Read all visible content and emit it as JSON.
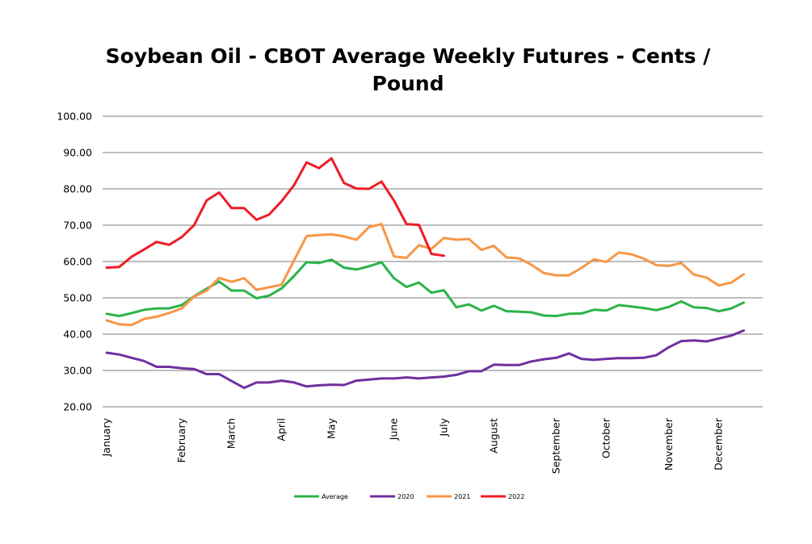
{
  "chart_data": {
    "type": "line",
    "title_line1": "Soybean Oil - CBOT Average Weekly Futures - Cents /",
    "title_line2": "Pound",
    "xlabel": "",
    "ylabel": "",
    "ylim": [
      20,
      100
    ],
    "yticks": [
      "20.00",
      "30.00",
      "40.00",
      "50.00",
      "60.00",
      "70.00",
      "80.00",
      "90.00",
      "100.00"
    ],
    "xlim_weeks": [
      1,
      53
    ],
    "grid": true,
    "legend_position": "bottom",
    "month_labels": [
      {
        "label": "January",
        "week": 1
      },
      {
        "label": "February",
        "week": 7
      },
      {
        "label": "March",
        "week": 11
      },
      {
        "label": "April",
        "week": 15
      },
      {
        "label": "May",
        "week": 19
      },
      {
        "label": "June",
        "week": 24
      },
      {
        "label": "July",
        "week": 28
      },
      {
        "label": "August",
        "week": 32
      },
      {
        "label": "September",
        "week": 37
      },
      {
        "label": "October",
        "week": 41
      },
      {
        "label": "November",
        "week": 46
      },
      {
        "label": "December",
        "week": 50
      }
    ],
    "series": [
      {
        "name": "Average",
        "color": "#2bb34a",
        "values": [
          45.6,
          45.0,
          45.8,
          46.7,
          47.1,
          47.1,
          48.0,
          50.4,
          52.5,
          54.5,
          52.0,
          52.0,
          49.9,
          50.6,
          52.6,
          56.0,
          59.8,
          59.6,
          60.5,
          58.3,
          57.8,
          58.7,
          59.8,
          55.4,
          53.0,
          54.2,
          51.4,
          52.1,
          47.4,
          48.2,
          46.5,
          47.8,
          46.3,
          46.2,
          46.0,
          45.1,
          45.0,
          45.6,
          45.7,
          46.7,
          46.5,
          48.0,
          47.6,
          47.2,
          46.6,
          47.5,
          49.0,
          47.4,
          47.2,
          46.3,
          47.1,
          48.7
        ]
      },
      {
        "name": "2020",
        "color": "#7030a0",
        "values": [
          34.9,
          34.4,
          33.5,
          32.6,
          31.0,
          31.0,
          30.6,
          30.4,
          29.0,
          29.0,
          27.1,
          25.2,
          26.7,
          26.7,
          27.2,
          26.7,
          25.6,
          25.9,
          26.1,
          26.0,
          27.2,
          27.5,
          27.8,
          27.8,
          28.1,
          27.8,
          28.1,
          28.3,
          28.8,
          29.8,
          29.8,
          31.6,
          31.5,
          31.5,
          32.5,
          33.1,
          33.5,
          34.7,
          33.2,
          32.9,
          33.2,
          33.4,
          33.4,
          33.5,
          34.2,
          36.4,
          38.1,
          38.3,
          38.0,
          38.8,
          39.6,
          41.0
        ]
      },
      {
        "name": "2021",
        "color": "#f79646",
        "values": [
          43.8,
          42.7,
          42.5,
          44.2,
          44.8,
          45.8,
          47.1,
          50.3,
          52.0,
          55.5,
          54.4,
          55.4,
          52.2,
          52.9,
          53.6,
          60.3,
          67.0,
          67.3,
          67.5,
          66.9,
          66.0,
          69.5,
          70.3,
          61.4,
          61.0,
          64.5,
          63.5,
          66.5,
          66.0,
          66.2,
          63.2,
          64.3,
          61.1,
          60.9,
          59.1,
          56.8,
          56.2,
          56.2,
          58.2,
          60.6,
          59.9,
          62.5,
          62.0,
          60.8,
          59.0,
          58.8,
          59.6,
          56.4,
          55.6,
          53.4,
          54.2,
          56.5
        ]
      },
      {
        "name": "2022",
        "color": "#ee1c25",
        "values": [
          58.3,
          58.5,
          61.3,
          63.3,
          65.4,
          64.6,
          66.7,
          70.0,
          76.8,
          79.0,
          74.7,
          74.7,
          71.5,
          72.9,
          76.6,
          81.0,
          87.3,
          85.7,
          88.4,
          81.6,
          80.1,
          80.0,
          82.0,
          76.8,
          70.3,
          70.1,
          62.1,
          61.6
        ]
      }
    ]
  }
}
